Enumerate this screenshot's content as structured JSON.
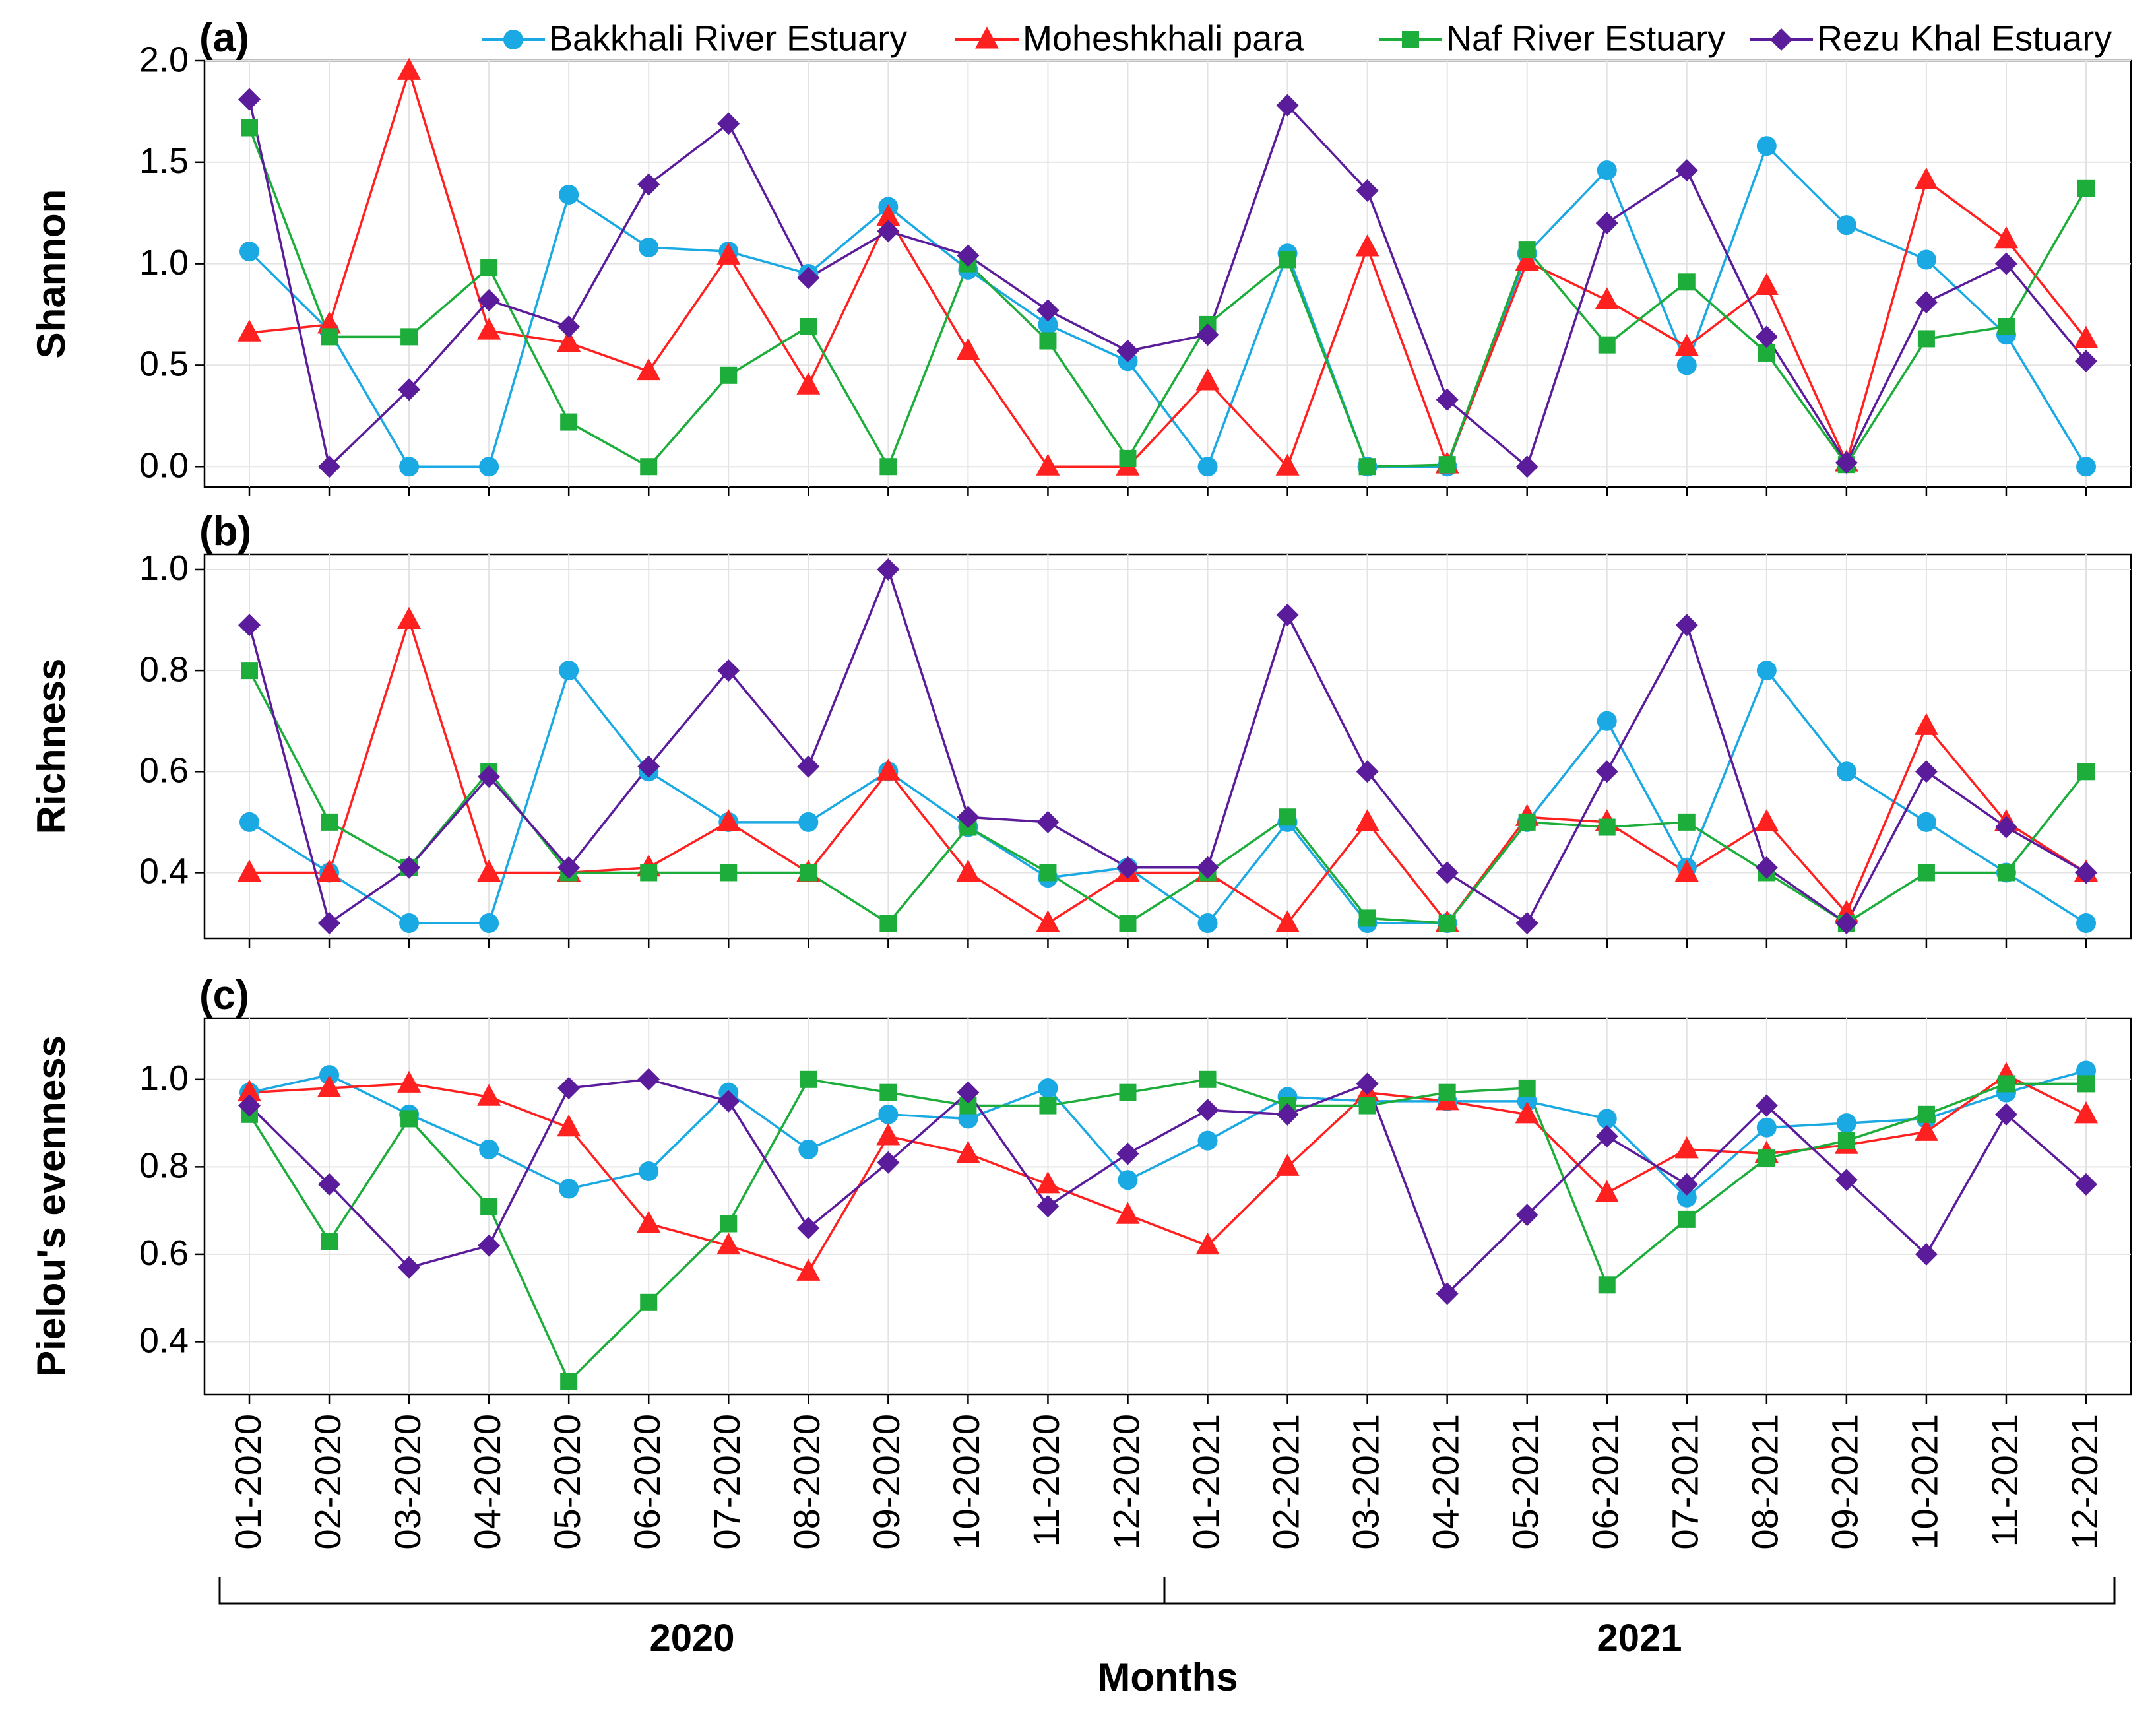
{
  "chart_data": {
    "type": "line",
    "xlabel": "Months",
    "categories": [
      "01-2020",
      "02-2020",
      "03-2020",
      "04-2020",
      "05-2020",
      "06-2020",
      "07-2020",
      "08-2020",
      "09-2020",
      "10-2020",
      "11-2020",
      "12-2020",
      "01-2021",
      "02-2021",
      "03-2021",
      "04-2021",
      "05-2021",
      "06-2021",
      "07-2021",
      "08-2021",
      "09-2021",
      "10-2021",
      "11-2021",
      "12-2021"
    ],
    "year_groups": [
      {
        "label": "2020",
        "from": 0,
        "to": 11
      },
      {
        "label": "2021",
        "from": 12,
        "to": 23
      }
    ],
    "series_styles": [
      {
        "name": "Bakkhali River Estuary",
        "color": "#1aa9e3",
        "marker": "circle"
      },
      {
        "name": "Moheshkhali para",
        "color": "#ff2020",
        "marker": "triangle"
      },
      {
        "name": "Naf River Estuary",
        "color": "#1cad3b",
        "marker": "square"
      },
      {
        "name": "Rezu Khal Estuary",
        "color": "#5b1c9c",
        "marker": "diamond"
      }
    ],
    "panels": [
      {
        "letter": "(a)",
        "ylabel": "Shannon",
        "ylim": [
          -0.1,
          2.0
        ],
        "yticks": [
          0.0,
          0.5,
          1.0,
          1.5,
          2.0
        ],
        "ytick_labels": [
          "0.0",
          "0.5",
          "1.0",
          "1.5",
          "2.0"
        ],
        "grid": true,
        "series": [
          {
            "name": "Bakkhali River Estuary",
            "values": [
              1.06,
              0.67,
              0.0,
              0.0,
              1.34,
              1.08,
              1.06,
              0.95,
              1.28,
              0.97,
              0.7,
              0.52,
              0.0,
              1.05,
              0.0,
              0.0,
              1.05,
              1.46,
              0.5,
              1.58,
              1.19,
              1.02,
              0.65,
              0.0
            ]
          },
          {
            "name": "Moheshkhali para",
            "values": [
              0.66,
              0.7,
              1.95,
              0.67,
              0.61,
              0.47,
              1.04,
              0.4,
              1.23,
              0.57,
              0.0,
              0.0,
              0.42,
              0.0,
              1.08,
              0.01,
              1.01,
              0.82,
              0.59,
              0.89,
              0.02,
              1.41,
              1.12,
              0.63
            ]
          },
          {
            "name": "Naf River Estuary",
            "values": [
              1.67,
              0.64,
              0.64,
              0.98,
              0.22,
              0.0,
              0.45,
              0.69,
              0.0,
              1.0,
              0.62,
              0.04,
              0.7,
              1.02,
              0.0,
              0.01,
              1.07,
              0.6,
              0.91,
              0.56,
              0.01,
              0.63,
              0.69,
              1.37
            ]
          },
          {
            "name": "Rezu Khal Estuary",
            "values": [
              1.81,
              0.0,
              0.38,
              0.82,
              0.69,
              1.39,
              1.69,
              0.93,
              1.16,
              1.04,
              0.77,
              0.57,
              0.65,
              1.78,
              1.36,
              0.33,
              0.0,
              1.2,
              1.46,
              0.64,
              0.02,
              0.81,
              1.0,
              0.52
            ]
          }
        ]
      },
      {
        "letter": "(b)",
        "ylabel": "Richness",
        "ylim": [
          0.27,
          1.03
        ],
        "yticks": [
          0.4,
          0.6,
          0.8,
          1.0
        ],
        "ytick_labels": [
          "0.4",
          "0.6",
          "0.8",
          "1.0"
        ],
        "grid": true,
        "series": [
          {
            "name": "Bakkhali River Estuary",
            "values": [
              0.5,
              0.4,
              0.3,
              0.3,
              0.8,
              0.6,
              0.5,
              0.5,
              0.6,
              0.49,
              0.39,
              0.41,
              0.3,
              0.5,
              0.3,
              0.3,
              0.5,
              0.7,
              0.41,
              0.8,
              0.6,
              0.5,
              0.4,
              0.3
            ]
          },
          {
            "name": "Moheshkhali para",
            "values": [
              0.4,
              0.4,
              0.9,
              0.4,
              0.4,
              0.41,
              0.5,
              0.4,
              0.6,
              0.4,
              0.3,
              0.4,
              0.4,
              0.3,
              0.5,
              0.3,
              0.51,
              0.5,
              0.4,
              0.5,
              0.32,
              0.69,
              0.5,
              0.4
            ]
          },
          {
            "name": "Naf River Estuary",
            "values": [
              0.8,
              0.5,
              0.41,
              0.6,
              0.4,
              0.4,
              0.4,
              0.4,
              0.3,
              0.49,
              0.4,
              0.3,
              0.4,
              0.51,
              0.31,
              0.3,
              0.5,
              0.49,
              0.5,
              0.4,
              0.3,
              0.4,
              0.4,
              0.6
            ]
          },
          {
            "name": "Rezu Khal Estuary",
            "values": [
              0.89,
              0.3,
              0.41,
              0.59,
              0.41,
              0.61,
              0.8,
              0.61,
              1.0,
              0.51,
              0.5,
              0.41,
              0.41,
              0.91,
              0.6,
              0.4,
              0.3,
              0.6,
              0.89,
              0.41,
              0.3,
              0.6,
              0.49,
              0.4
            ]
          }
        ]
      },
      {
        "letter": "(c)",
        "ylabel": "Pielou's evenness",
        "ylim": [
          0.28,
          1.14
        ],
        "yticks": [
          0.4,
          0.6,
          0.8,
          1.0
        ],
        "ytick_labels": [
          "0.4",
          "0.6",
          "0.8",
          "1.0"
        ],
        "grid": true,
        "series": [
          {
            "name": "Bakkhali River Estuary",
            "values": [
              0.97,
              1.01,
              0.92,
              0.84,
              0.75,
              0.79,
              0.97,
              0.84,
              0.92,
              0.91,
              0.98,
              0.77,
              0.86,
              0.96,
              0.95,
              0.95,
              0.95,
              0.91,
              0.73,
              0.89,
              0.9,
              0.91,
              0.97,
              1.02
            ]
          },
          {
            "name": "Moheshkhali para",
            "values": [
              0.97,
              0.98,
              0.99,
              0.96,
              0.89,
              0.67,
              0.62,
              0.56,
              0.87,
              0.83,
              0.76,
              0.69,
              0.62,
              0.8,
              0.97,
              0.95,
              0.92,
              0.74,
              0.84,
              0.83,
              0.85,
              0.88,
              1.01,
              0.92
            ]
          },
          {
            "name": "Naf River Estuary",
            "values": [
              0.92,
              0.63,
              0.91,
              0.71,
              0.31,
              0.49,
              0.67,
              1.0,
              0.97,
              0.94,
              0.94,
              0.97,
              1.0,
              0.94,
              0.94,
              0.97,
              0.98,
              0.53,
              0.68,
              0.82,
              0.86,
              0.92,
              0.99,
              0.99
            ]
          },
          {
            "name": "Rezu Khal Estuary",
            "values": [
              0.94,
              0.76,
              0.57,
              0.62,
              0.98,
              1.0,
              0.95,
              0.66,
              0.81,
              0.97,
              0.71,
              0.83,
              0.93,
              0.92,
              0.99,
              0.51,
              0.69,
              0.87,
              0.76,
              0.94,
              0.77,
              0.6,
              0.92,
              0.76
            ]
          }
        ]
      }
    ]
  }
}
